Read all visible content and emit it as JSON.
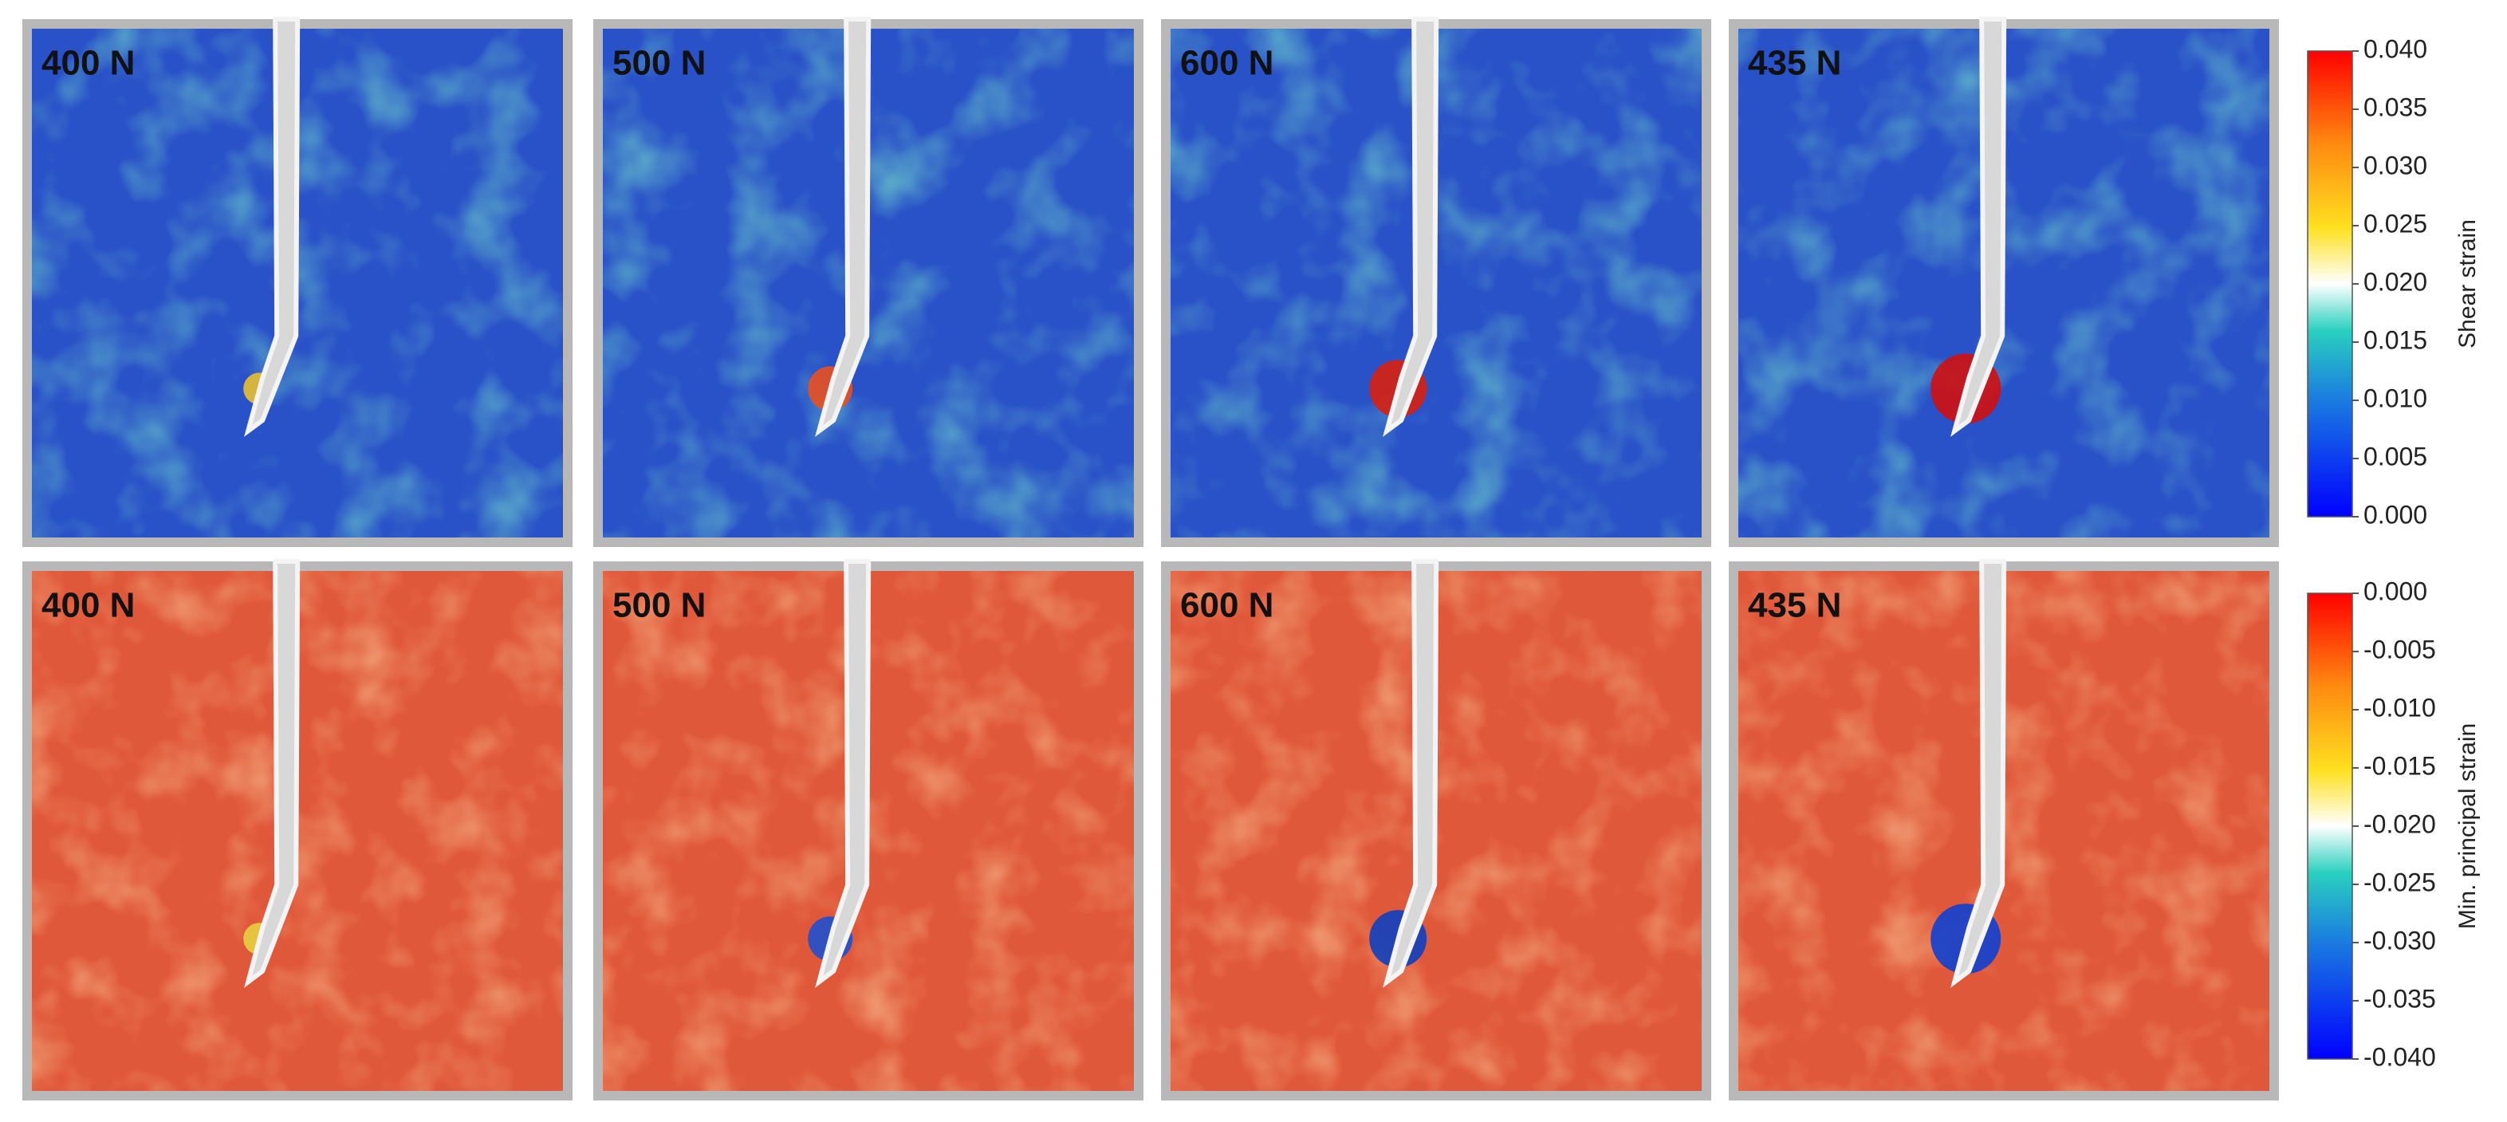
{
  "panels": {
    "rows": [
      {
        "labels": [
          "400 N",
          "500 N",
          "600 N",
          "435 N"
        ]
      },
      {
        "labels": [
          "400 N",
          "500 N",
          "600 N",
          "435 N"
        ]
      }
    ]
  },
  "colorbars": [
    {
      "title": "Shear strain",
      "range": [
        0,
        0.04
      ],
      "ticks": [
        {
          "value": 0.04,
          "label": "0.040"
        },
        0.035,
        {
          "value": 0.03,
          "label": "0.030"
        },
        0.025,
        {
          "value": 0.02,
          "label": "0.020"
        },
        0.015,
        {
          "value": 0.01,
          "label": "0.010"
        },
        0.005,
        {
          "value": 0,
          "label": "0.000"
        }
      ]
    },
    {
      "title": "Min. principal strain",
      "range": [
        -0.04,
        0
      ],
      "ticks": [
        {
          "value": 0,
          "label": "0.000"
        },
        -0.005,
        {
          "value": -0.01,
          "label": "-0.010"
        },
        -0.015,
        {
          "value": -0.02,
          "label": "-0.020"
        },
        -0.025,
        {
          "value": -0.03,
          "label": "-0.030"
        },
        -0.035,
        {
          "value": -0.04,
          "label": "-0.040"
        }
      ]
    }
  ]
}
